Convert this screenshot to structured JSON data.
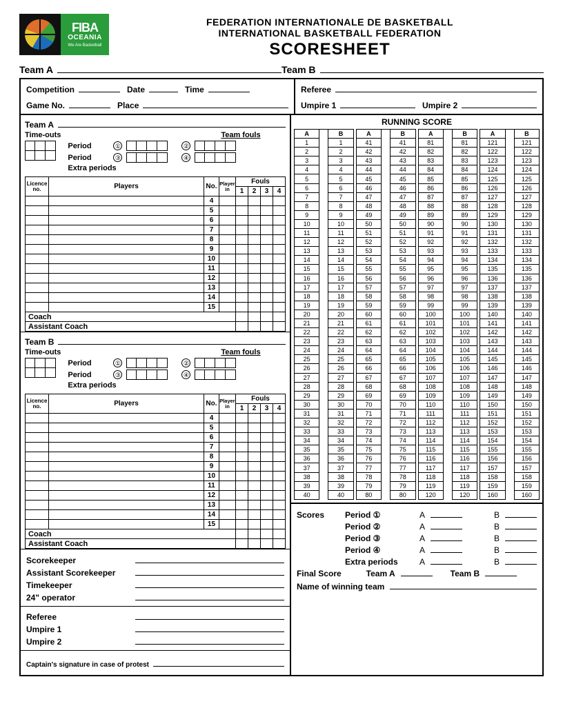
{
  "logo": {
    "fiba": "FIBA",
    "oceania": "OCEANIA",
    "tagline": "We Are Basketball"
  },
  "title": {
    "line1": "FEDERATION INTERNATIONALE DE BASKETBALL",
    "line2": "INTERNATIONAL BASKETBALL FEDERATION",
    "line3": "SCORESHEET"
  },
  "team_labels": {
    "a": "Team A",
    "b": "Team B"
  },
  "meta": {
    "competition": "Competition",
    "date": "Date",
    "time": "Time",
    "game_no": "Game No.",
    "place": "Place",
    "referee": "Referee",
    "umpire1": "Umpire 1",
    "umpire2": "Umpire 2"
  },
  "team_block": {
    "timeouts": "Time-outs",
    "period": "Period",
    "extra": "Extra periods",
    "team_fouls": "Team fouls",
    "circles": [
      "①",
      "②",
      "③",
      "④"
    ],
    "players_header": {
      "licence": "Licence no.",
      "players": "Players",
      "no": "No.",
      "player_in": "Player in",
      "fouls": "Fouls",
      "foul_nums": [
        "1",
        "2",
        "3",
        "4"
      ]
    },
    "player_numbers": [
      "4",
      "5",
      "6",
      "7",
      "8",
      "9",
      "10",
      "11",
      "12",
      "13",
      "14",
      "15"
    ],
    "coach": "Coach",
    "assistant": "Assistant Coach"
  },
  "officials": {
    "scorekeeper": "Scorekeeper",
    "asst_scorekeeper": "Assistant Scorekeeper",
    "timekeeper": "Timekeeper",
    "operator": "24\" operator",
    "referee": "Referee",
    "umpire1": "Umpire 1",
    "umpire2": "Umpire 2",
    "captain": "Captain's signature in case of protest"
  },
  "running_score": {
    "title": "RUNNING SCORE",
    "a": "A",
    "b": "B",
    "ranges": [
      [
        1,
        40
      ],
      [
        41,
        80
      ],
      [
        81,
        120
      ],
      [
        121,
        160
      ]
    ]
  },
  "summary": {
    "scores": "Scores",
    "period": "Period",
    "circles": [
      "①",
      "②",
      "③",
      "④"
    ],
    "extra": "Extra periods",
    "a": "A",
    "b": "B",
    "final": "Final Score",
    "teamA": "Team A",
    "teamB": "Team B",
    "winning": "Name of winning team"
  },
  "colors": {
    "border": "#000000",
    "fiba_green": "#2a9c3b",
    "logo_bg": "#111111"
  }
}
